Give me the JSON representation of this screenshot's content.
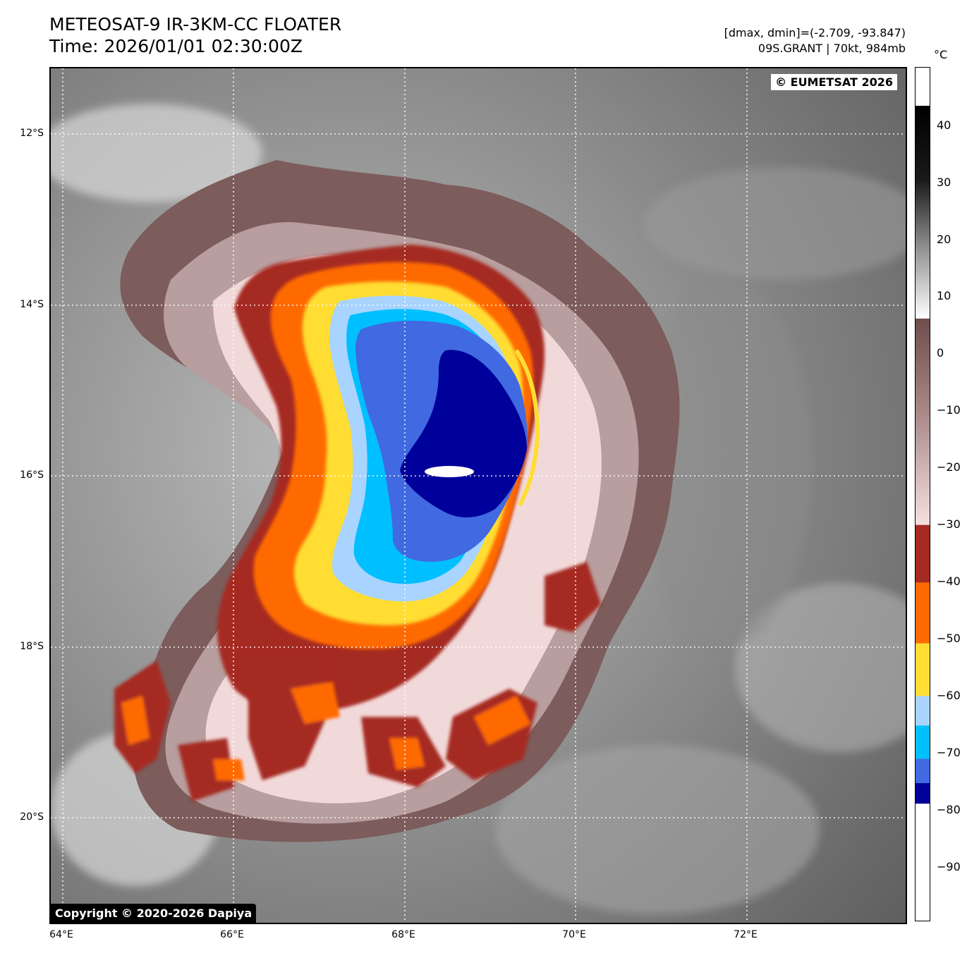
{
  "header": {
    "title_line1": "METEOSAT-9 IR-3KM-CC FLOATER",
    "title_line2": "Time: 2026/01/01 02:30:00Z",
    "range_text": "[dmax, dmin]=(-2.709, -93.847)",
    "storm_text": "09S.GRANT | 70kt, 984mb"
  },
  "map": {
    "copyright_top": "© EUMETSAT 2026",
    "copyright_bottom": "Copyright © 2020-2026 Dapiya",
    "lat_labels": [
      "12°S",
      "14°S",
      "16°S",
      "18°S",
      "20°S"
    ],
    "lon_labels": [
      "64°E",
      "66°E",
      "68°E",
      "70°E",
      "72°E"
    ]
  },
  "colorbar": {
    "unit": "°C",
    "ticks": [
      "40",
      "30",
      "20",
      "10",
      "0",
      "−10",
      "−20",
      "−30",
      "−40",
      "−50",
      "−60",
      "−70",
      "−80",
      "−90"
    ],
    "colors": {
      "black": "#000000",
      "white": "#ffffff",
      "brown": "#7a5a5a",
      "pink": "#f4dada",
      "darkred": "#a52a22",
      "orange": "#ff6a00",
      "yellow": "#ffdd33",
      "lightblue": "#a8d4ff",
      "cyan": "#00bfff",
      "royalblue": "#4169e1",
      "navy": "#00009a"
    }
  }
}
